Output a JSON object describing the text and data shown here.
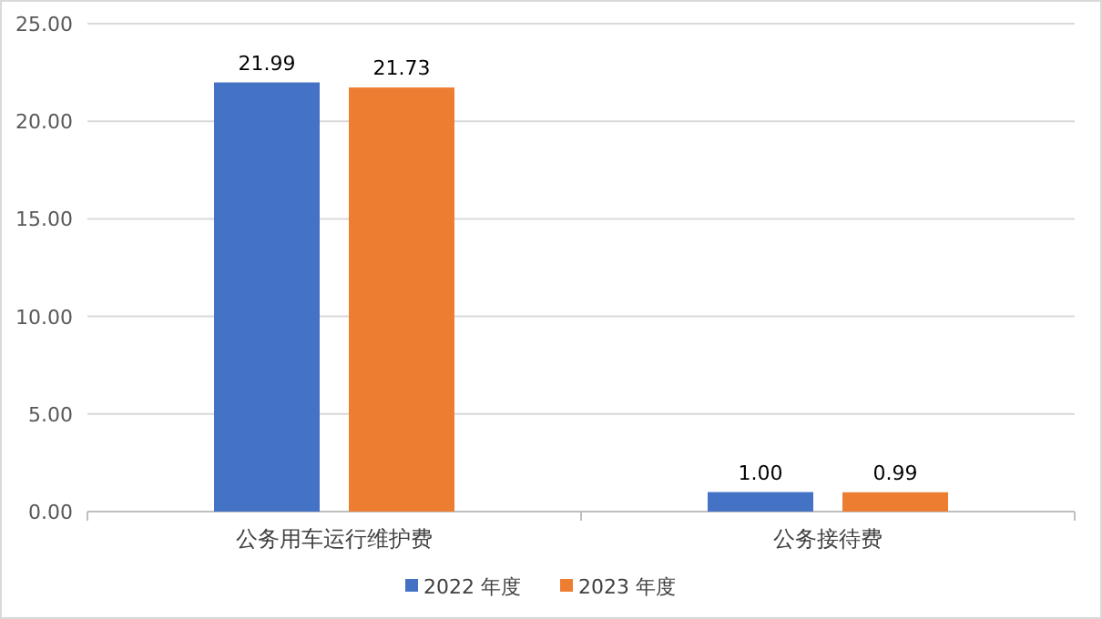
{
  "chart_data": {
    "type": "bar",
    "categories": [
      "公务用车运行维护费",
      "公务接待费"
    ],
    "series": [
      {
        "name": "2022 年度",
        "color": "#4472c4",
        "values": [
          21.99,
          1.0
        ]
      },
      {
        "name": "2023 年度",
        "color": "#ed7d31",
        "values": [
          21.73,
          0.99
        ]
      }
    ],
    "value_labels": [
      [
        "21.99",
        "1.00"
      ],
      [
        "21.73",
        "0.99"
      ]
    ],
    "ylim": [
      0,
      25
    ],
    "yticks": [
      {
        "value": 0,
        "label": "0.00"
      },
      {
        "value": 5,
        "label": "5.00"
      },
      {
        "value": 10,
        "label": "10.00"
      },
      {
        "value": 15,
        "label": "15.00"
      },
      {
        "value": 20,
        "label": "20.00"
      },
      {
        "value": 25,
        "label": "25.00"
      }
    ],
    "grid": "y",
    "legend": "bottom"
  }
}
